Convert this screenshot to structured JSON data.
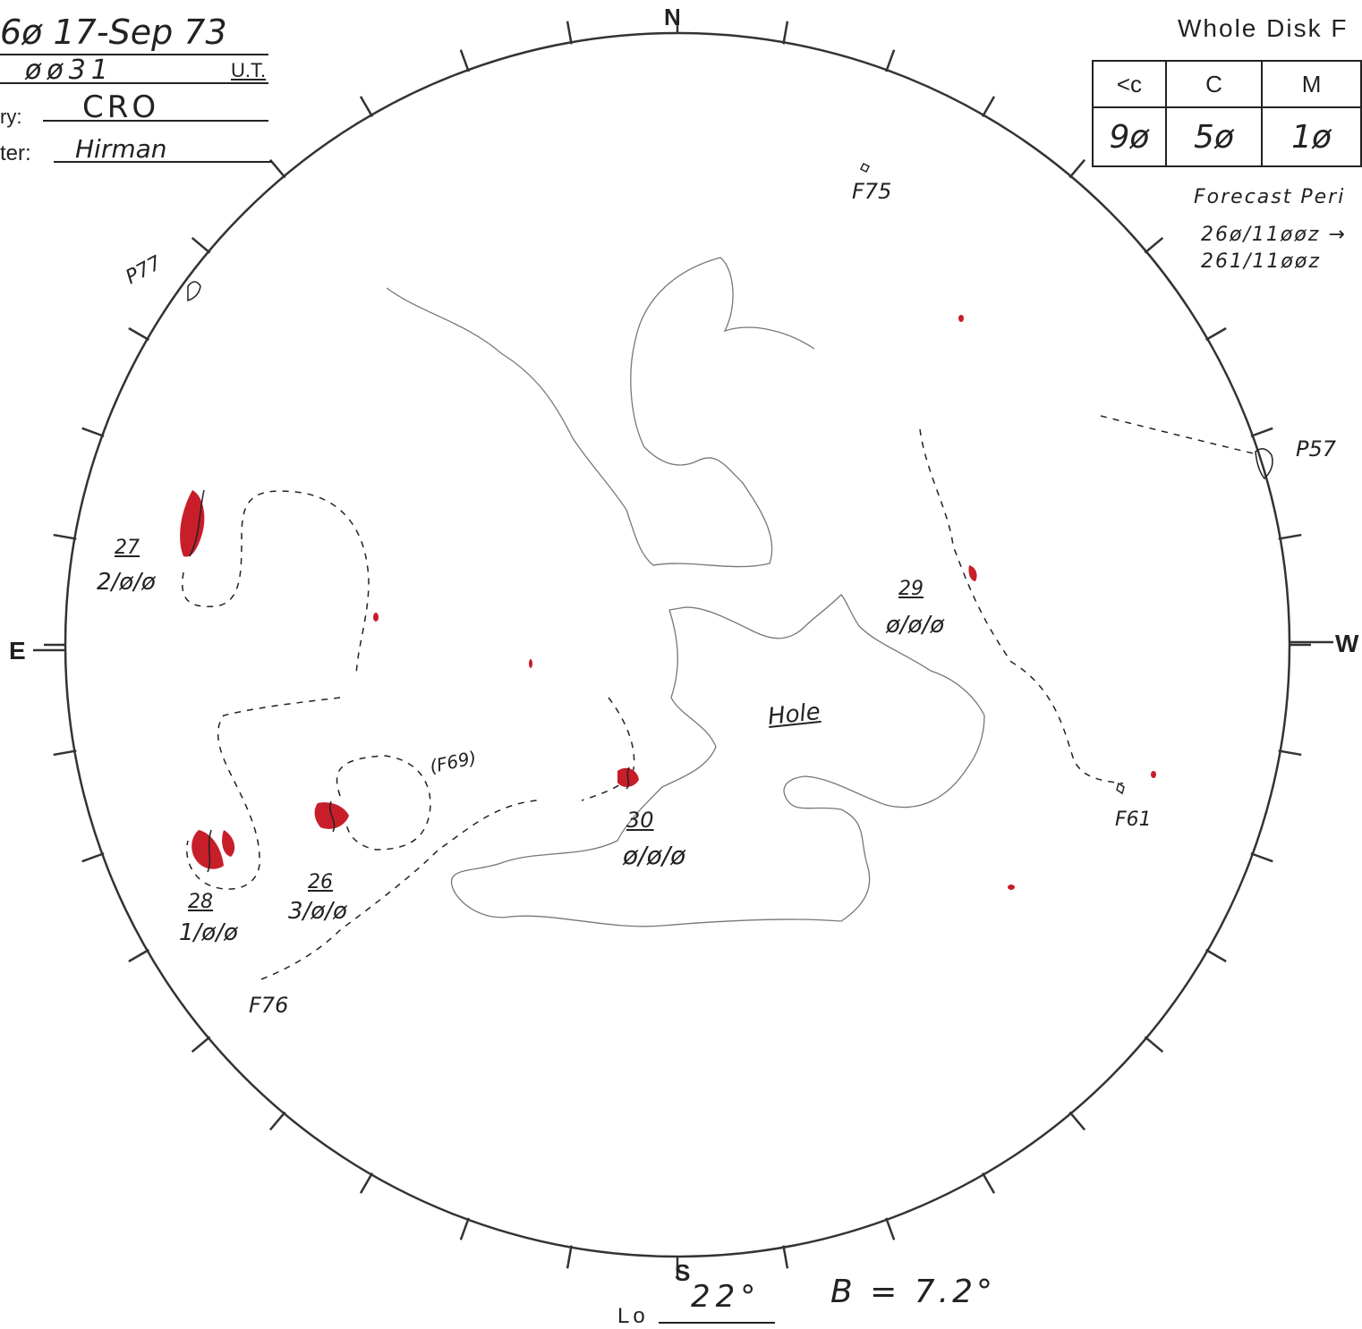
{
  "header": {
    "date_fragment": "6ø  17-Sep 73",
    "time_fragment": "øø31",
    "time_unit": "U.T.",
    "observatory_label": "ry:",
    "observatory_value": "CRO",
    "forecaster_label": "ter:",
    "forecaster_value": "Hirman"
  },
  "probability": {
    "title": "Whole Disk F",
    "columns": [
      "<c",
      "C",
      "M"
    ],
    "values": [
      "9ø",
      "5ø",
      "1ø"
    ],
    "forecast_label": "Forecast  Peri",
    "forecast_lines": [
      "26ø/11øøz →",
      "261/11øøz"
    ]
  },
  "compass": {
    "north": "N",
    "south": "S",
    "east": "E",
    "west": "W"
  },
  "regions": [
    {
      "number": "27",
      "class": "2/ø/ø"
    },
    {
      "number": "28",
      "class": "1/ø/ø"
    },
    {
      "number": "26",
      "class": "3/ø/ø"
    },
    {
      "number": "30",
      "class": "ø/ø/ø"
    },
    {
      "number": "29",
      "class": "ø/ø/ø"
    }
  ],
  "features": {
    "f75": "F75",
    "f76": "F76",
    "f61": "F61",
    "f69": "(F69)",
    "p77": "P77",
    "p57": "P57",
    "hole": "Hole"
  },
  "footer": {
    "lo_label": "Lo",
    "lo_value": "22°",
    "b_value": "B = 7.2°"
  }
}
